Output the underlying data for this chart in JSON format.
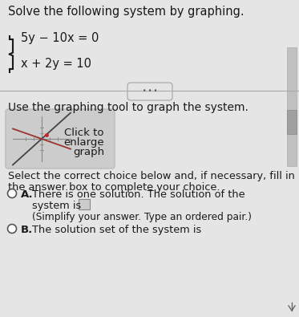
{
  "title": "Solve the following system by graphing.",
  "eq1": "5y − 10x = 0",
  "eq2": "x + 2y = 10",
  "instruction": "Use the graphing tool to graph the system.",
  "button_line1": "Click to",
  "button_line2": "enlarge",
  "button_line3": "graph",
  "select_line1": "Select the correct choice below and, if necessary, fill in",
  "select_line2": "the answer box to complete your choice.",
  "choiceA_line1": "There is one solution. The solution of the",
  "choiceA_line2": "system is",
  "choiceA_line3": "(Simplify your answer. Type an ordered pair.)",
  "choiceB_line1": "The solution set of the system is",
  "bg_color": "#e5e5e5",
  "dark_text": "#1a1a1a",
  "graph_bg": "#d0d0d0",
  "figsize": [
    3.73,
    3.95
  ],
  "dpi": 100
}
